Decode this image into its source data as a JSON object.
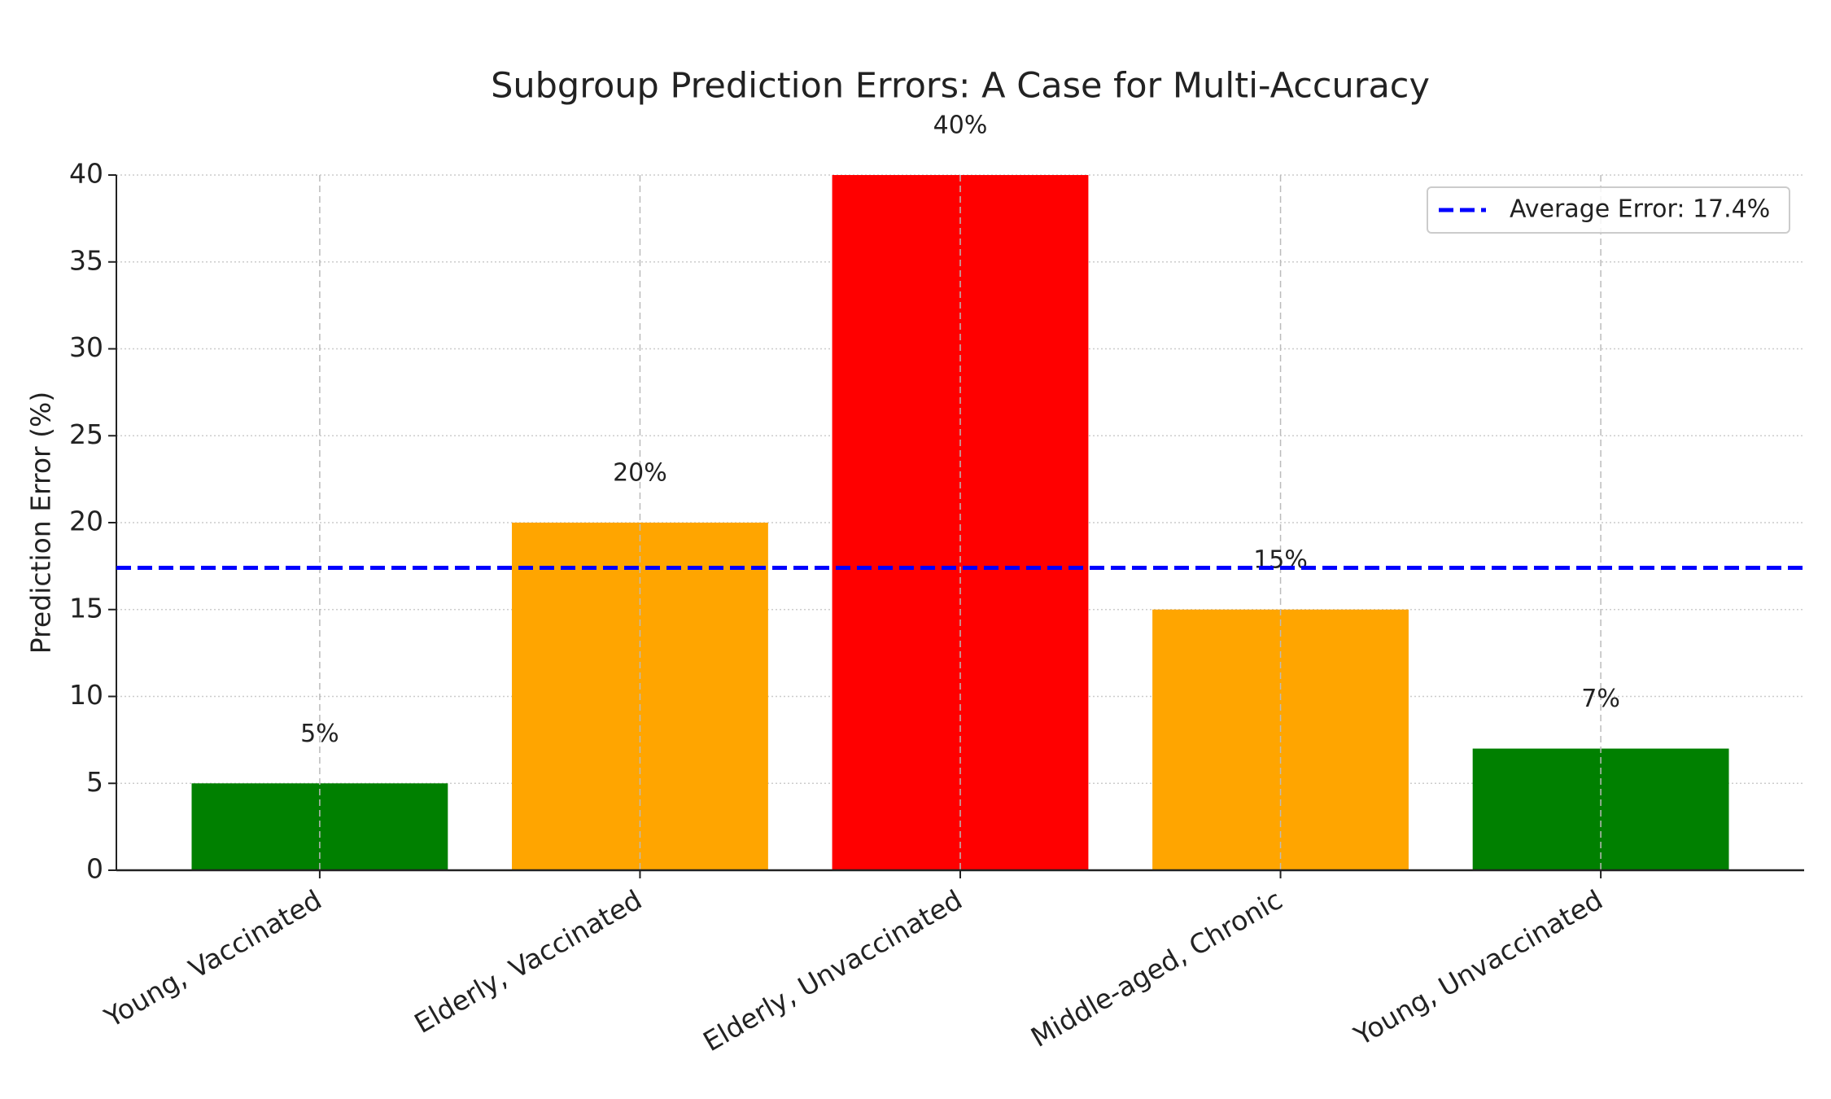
{
  "chart_data": {
    "type": "bar",
    "title": "Subgroup Prediction Errors: A Case for Multi-Accuracy",
    "y_label": "Prediction Error (%)",
    "categories": [
      "Young, Vaccinated",
      "Elderly, Vaccinated",
      "Elderly, Unvaccinated",
      "Middle-aged, Chronic",
      "Young, Unvaccinated"
    ],
    "values": [
      5,
      20,
      40,
      15,
      7
    ],
    "value_labels": [
      "5%",
      "20%",
      "40%",
      "15%",
      "7%"
    ],
    "colors": [
      "#008000",
      "#ffa500",
      "#ff0000",
      "#ffa500",
      "#008000"
    ],
    "reference_line": {
      "value": 17.4,
      "label": "Average Error: 17.4%",
      "color": "#0000ff"
    },
    "ylim": [
      0,
      40
    ],
    "yticks": [
      0,
      5,
      10,
      15,
      20,
      25,
      30,
      35,
      40
    ],
    "grid": true,
    "legend": "upper right"
  }
}
